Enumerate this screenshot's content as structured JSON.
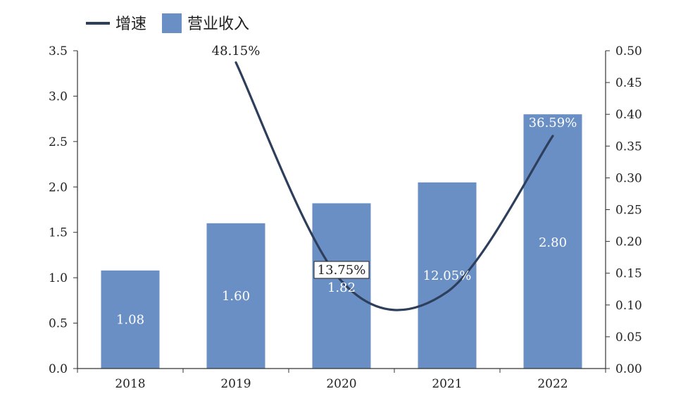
{
  "chart_data": {
    "type": "bar",
    "categories": [
      "2018",
      "2019",
      "2020",
      "2021",
      "2022"
    ],
    "series": [
      {
        "name": "营业收入",
        "chart_type": "bar",
        "axis": "left",
        "values": [
          1.08,
          1.6,
          1.82,
          2.05,
          2.8
        ],
        "labels": [
          "1.08",
          "1.60",
          "1.82",
          "",
          "2.80"
        ],
        "color": "#6a8fc4"
      },
      {
        "name": "增速",
        "chart_type": "line",
        "axis": "right",
        "smooth": true,
        "values": [
          null,
          0.4815,
          0.1375,
          0.1205,
          0.3659
        ],
        "labels": [
          "",
          "48.15%",
          "13.75%",
          "12.05%",
          "36.59%"
        ],
        "color": "#2e3f5c"
      }
    ],
    "y_left": {
      "ylim": [
        0,
        3.5
      ],
      "ticks": [
        "0.0",
        "0.5",
        "1.0",
        "1.5",
        "2.0",
        "2.5",
        "3.0",
        "3.5"
      ]
    },
    "y_right": {
      "ylim": [
        0,
        0.5
      ],
      "ticks": [
        "0.00",
        "0.05",
        "0.10",
        "0.15",
        "0.20",
        "0.25",
        "0.30",
        "0.35",
        "0.40",
        "0.45",
        "0.50"
      ]
    },
    "grid": false,
    "legend_position": "top-left"
  }
}
